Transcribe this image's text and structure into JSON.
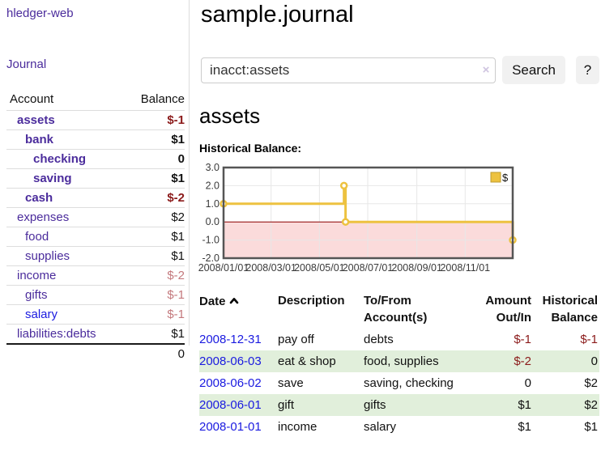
{
  "app": {
    "title": "hledger-web",
    "nav_journal": "Journal"
  },
  "colors": {
    "link_purple": "#4b2c9c",
    "link_blue": "#1a1ae0",
    "negative_strong": "#8b1a1a",
    "negative_muted": "#c4797d",
    "row_green": "#e1efdb",
    "series_gold": "#edc240"
  },
  "sidebar": {
    "header": {
      "account": "Account",
      "balance": "Balance"
    },
    "rows": [
      {
        "name": "assets",
        "balance": "$-1",
        "row_class": "d1",
        "name_class": "b",
        "bal_class": "b negS"
      },
      {
        "name": "bank",
        "balance": "$1",
        "row_class": "d2",
        "name_class": "b",
        "bal_class": "b"
      },
      {
        "name": "checking",
        "balance": "0",
        "row_class": "d3",
        "name_class": "b",
        "bal_class": "b"
      },
      {
        "name": "saving",
        "balance": "$1",
        "row_class": "d3",
        "name_class": "b",
        "bal_class": "b"
      },
      {
        "name": "cash",
        "balance": "$-2",
        "row_class": "d2",
        "name_class": "b",
        "bal_class": "b negS"
      },
      {
        "name": "expenses",
        "balance": "$2",
        "row_class": "d1",
        "name_class": "",
        "bal_class": ""
      },
      {
        "name": "food",
        "balance": "$1",
        "row_class": "d2",
        "name_class": "",
        "bal_class": ""
      },
      {
        "name": "supplies",
        "balance": "$1",
        "row_class": "d2",
        "name_class": "",
        "bal_class": ""
      },
      {
        "name": "income",
        "balance": "$-2",
        "row_class": "d1",
        "name_class": "",
        "bal_class": "negM"
      },
      {
        "name": "gifts",
        "balance": "$-1",
        "row_class": "d2",
        "name_class": "",
        "bal_class": "negM"
      },
      {
        "name": "salary",
        "balance": "$-1",
        "row_class": "d2",
        "name_class": "blue",
        "bal_class": "negM"
      },
      {
        "name": "liabilities:debts",
        "balance": "$1",
        "row_class": "d1",
        "name_class": "",
        "bal_class": ""
      }
    ],
    "total": "0"
  },
  "main": {
    "title": "sample.journal",
    "search": {
      "value": "inacct:assets",
      "clear_icon": "×",
      "button": "Search",
      "help_button": "?"
    },
    "account_heading": "assets",
    "chart_heading": "Historical Balance:",
    "register": {
      "headers": {
        "date": "Date",
        "description": "Description",
        "accounts": "To/From Account(s)",
        "amount": "Amount Out/In",
        "balance": "Historical Balance"
      },
      "rows": [
        {
          "date": "2008-12-31",
          "description": "pay off",
          "accounts": "debts",
          "amount": "$-1",
          "balance": "$-1",
          "amount_class": "negS",
          "balance_class": "negS"
        },
        {
          "date": "2008-06-03",
          "description": "eat & shop",
          "accounts": "food, supplies",
          "amount": "$-2",
          "balance": "0",
          "amount_class": "negS",
          "balance_class": ""
        },
        {
          "date": "2008-06-02",
          "description": "save",
          "accounts": "saving, checking",
          "amount": "0",
          "balance": "$2",
          "amount_class": "",
          "balance_class": ""
        },
        {
          "date": "2008-06-01",
          "description": "gift",
          "accounts": "gifts",
          "amount": "$1",
          "balance": "$2",
          "amount_class": "",
          "balance_class": ""
        },
        {
          "date": "2008-01-01",
          "description": "income",
          "accounts": "salary",
          "amount": "$1",
          "balance": "$1",
          "amount_class": "",
          "balance_class": ""
        }
      ]
    }
  },
  "chart_data": {
    "type": "line",
    "title": "Historical Balance:",
    "step": true,
    "x_range": [
      "2008-01-01",
      "2008-12-31"
    ],
    "ylim": [
      -2,
      3
    ],
    "yticks": [
      "3.0",
      "2.0",
      "1.0",
      "0.0",
      "-1.0",
      "-2.0"
    ],
    "xticks": [
      "2008/01/01",
      "2008/03/01",
      "2008/05/01",
      "2008/07/01",
      "2008/09/01",
      "2008/11/01"
    ],
    "series": [
      {
        "name": "$",
        "color": "#edc240",
        "points": [
          [
            "2008-01-01",
            1
          ],
          [
            "2008-06-01",
            2
          ],
          [
            "2008-06-03",
            0
          ],
          [
            "2008-12-31",
            -1
          ]
        ]
      }
    ],
    "legend": "$",
    "legend_position": "top-right",
    "grid": true,
    "negative_fill": "#fbdbdb",
    "zero_line_color": "#8b0000"
  }
}
